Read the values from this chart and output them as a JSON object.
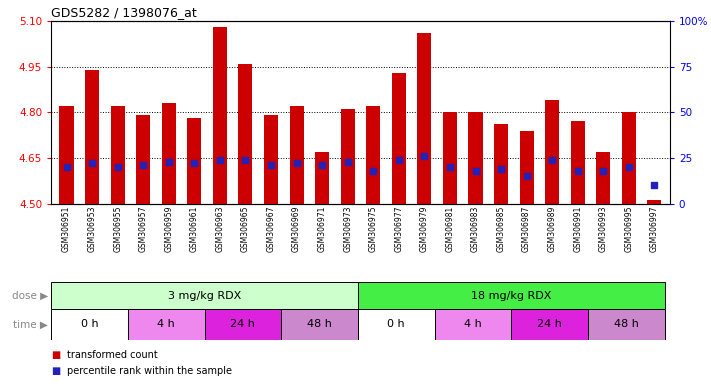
{
  "title": "GDS5282 / 1398076_at",
  "samples": [
    "GSM306951",
    "GSM306953",
    "GSM306955",
    "GSM306957",
    "GSM306959",
    "GSM306961",
    "GSM306963",
    "GSM306965",
    "GSM306967",
    "GSM306969",
    "GSM306971",
    "GSM306973",
    "GSM306975",
    "GSM306977",
    "GSM306979",
    "GSM306981",
    "GSM306983",
    "GSM306985",
    "GSM306987",
    "GSM306989",
    "GSM306991",
    "GSM306993",
    "GSM306995",
    "GSM306997"
  ],
  "transformed_count": [
    4.82,
    4.94,
    4.82,
    4.79,
    4.83,
    4.78,
    5.08,
    4.96,
    4.79,
    4.82,
    4.67,
    4.81,
    4.82,
    4.93,
    5.06,
    4.8,
    4.8,
    4.76,
    4.74,
    4.84,
    4.77,
    4.67,
    4.8,
    4.51
  ],
  "percentile_rank": [
    20,
    22,
    20,
    21,
    23,
    22,
    24,
    24,
    21,
    22,
    21,
    23,
    18,
    24,
    26,
    20,
    18,
    19,
    15,
    24,
    18,
    18,
    20,
    10
  ],
  "ymin": 4.5,
  "ymax": 5.1,
  "yticks_left": [
    4.5,
    4.65,
    4.8,
    4.95,
    5.1
  ],
  "yticks_right_vals": [
    0,
    25,
    50,
    75,
    100
  ],
  "yticks_right_labels": [
    "0",
    "25",
    "50",
    "75",
    "100%"
  ],
  "bar_color": "#cc0000",
  "blue_color": "#2222bb",
  "xtick_bg": "#cccccc",
  "dose_groups": [
    {
      "label": "3 mg/kg RDX",
      "start": 0,
      "end": 12,
      "color": "#ccffcc"
    },
    {
      "label": "18 mg/kg RDX",
      "start": 12,
      "end": 24,
      "color": "#44ee44"
    }
  ],
  "time_groups": [
    {
      "label": "0 h",
      "start": 0,
      "end": 3,
      "color": "#ffffff"
    },
    {
      "label": "4 h",
      "start": 3,
      "end": 6,
      "color": "#ee88ee"
    },
    {
      "label": "24 h",
      "start": 6,
      "end": 9,
      "color": "#dd22dd"
    },
    {
      "label": "48 h",
      "start": 9,
      "end": 12,
      "color": "#cc88cc"
    },
    {
      "label": "0 h",
      "start": 12,
      "end": 15,
      "color": "#ffffff"
    },
    {
      "label": "4 h",
      "start": 15,
      "end": 18,
      "color": "#ee88ee"
    },
    {
      "label": "24 h",
      "start": 18,
      "end": 21,
      "color": "#dd22dd"
    },
    {
      "label": "48 h",
      "start": 21,
      "end": 24,
      "color": "#cc88cc"
    }
  ],
  "grid_lines": [
    4.65,
    4.8,
    4.95
  ],
  "legend_red_label": "transformed count",
  "legend_blue_label": "percentile rank within the sample",
  "dose_label": "dose",
  "time_label": "time",
  "left_label_color": "#888888"
}
